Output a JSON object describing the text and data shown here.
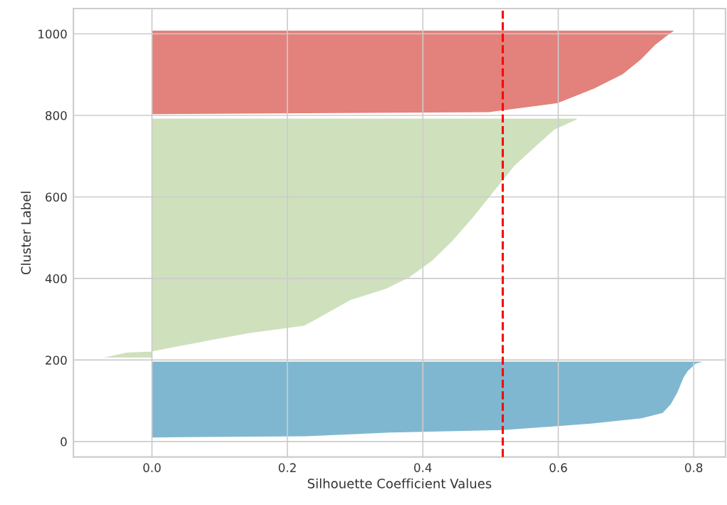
{
  "chart_data": {
    "type": "area",
    "orientation": "horizontal",
    "xlabel": "Silhouette Coefficient Values",
    "ylabel": "Cluster Label",
    "series": [
      {
        "color": "#80b7d0",
        "x": [
          10,
          13,
          22,
          28,
          44,
          57,
          70,
          91,
          121,
          157,
          173,
          191,
          196
        ],
        "values": [
          0.0,
          0.227,
          0.352,
          0.519,
          0.648,
          0.723,
          0.754,
          0.766,
          0.776,
          0.785,
          0.791,
          0.803,
          0.813
        ]
      },
      {
        "color": "#cfe0bd",
        "x": [
          206,
          218,
          221,
          248,
          266,
          284,
          306,
          347,
          375,
          403,
          444,
          491,
          548,
          616,
          676,
          728,
          765,
          790,
          792
        ],
        "values": [
          -0.071,
          -0.037,
          0.0,
          0.084,
          0.143,
          0.225,
          0.249,
          0.293,
          0.346,
          0.38,
          0.414,
          0.443,
          0.473,
          0.506,
          0.535,
          0.569,
          0.594,
          0.627,
          0.627
        ]
      },
      {
        "color": "#e3817c",
        "x": [
          803,
          808,
          830,
          866,
          901,
          937,
          973,
          995,
          1008
        ],
        "values": [
          0.0,
          0.497,
          0.599,
          0.653,
          0.695,
          0.722,
          0.743,
          0.76,
          0.771
        ]
      }
    ],
    "xlim": [
      -0.116,
      0.847
    ],
    "ylim": [
      -38,
      1062
    ],
    "xticks": [
      {
        "value": 0,
        "label": "0.0"
      },
      {
        "value": 0.2,
        "label": "0.2"
      },
      {
        "value": 0.4,
        "label": "0.4"
      },
      {
        "value": 0.6,
        "label": "0.6"
      },
      {
        "value": 0.8,
        "label": "0.8"
      }
    ],
    "yticks": [
      0,
      200,
      400,
      600,
      800,
      1000
    ],
    "ref_lines": [
      {
        "axis": "x",
        "value": 0.518,
        "label": null,
        "color": "#ff0000",
        "line_style": "dashed"
      }
    ],
    "grid": true
  }
}
